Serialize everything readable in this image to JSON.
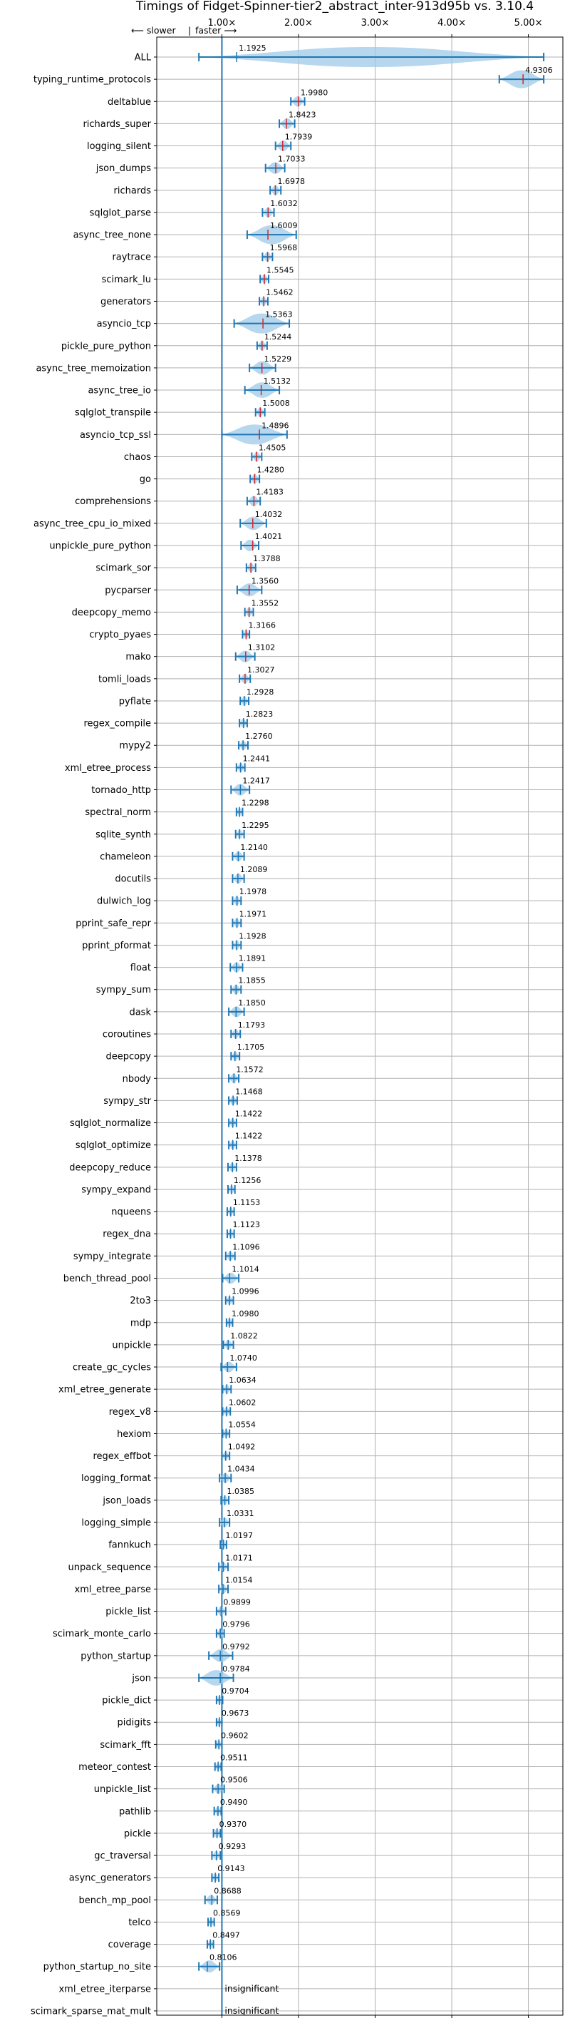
{
  "chart_data": {
    "type": "violin",
    "title": "Timings of Fidget-Spinner-tier2_abstract_inter-913d95b vs. 3.10.4",
    "direction_note": {
      "slower": "⟵ slower",
      "separator": "|",
      "faster": "faster ⟶"
    },
    "x_ticks": [
      "1.00×",
      "2.00×",
      "3.00×",
      "4.00×",
      "5.00×"
    ],
    "x_tick_values": [
      1,
      2,
      3,
      4,
      5
    ],
    "xlim": [
      0.15,
      5.45
    ],
    "reference_line": 1.0,
    "grid": true,
    "colors": {
      "violin": "#9ec9e8",
      "whisker": "#1f77b4",
      "faster_mark": "#1f77b4",
      "slower_mark": "#d62728",
      "grid": "#b0b0b0"
    },
    "benchmarks": [
      {
        "name": "ALL",
        "value": 1.1925,
        "label": "1.1925",
        "min": 0.7,
        "max": 5.2
      },
      {
        "name": "typing_runtime_protocols",
        "value": 4.9306,
        "label": "4.9306",
        "min": 4.62,
        "max": 5.2
      },
      {
        "name": "deltablue",
        "value": 1.998,
        "label": "1.9980",
        "min": 1.9,
        "max": 2.08
      },
      {
        "name": "richards_super",
        "value": 1.8423,
        "label": "1.8423",
        "min": 1.75,
        "max": 1.95
      },
      {
        "name": "logging_silent",
        "value": 1.7939,
        "label": "1.7939",
        "min": 1.7,
        "max": 1.9
      },
      {
        "name": "json_dumps",
        "value": 1.7033,
        "label": "1.7033",
        "min": 1.57,
        "max": 1.82
      },
      {
        "name": "richards",
        "value": 1.6978,
        "label": "1.6978",
        "min": 1.63,
        "max": 1.77
      },
      {
        "name": "sqlglot_parse",
        "value": 1.6032,
        "label": "1.6032",
        "min": 1.53,
        "max": 1.68
      },
      {
        "name": "async_tree_none",
        "value": 1.6009,
        "label": "1.6009",
        "min": 1.33,
        "max": 1.97
      },
      {
        "name": "raytrace",
        "value": 1.5968,
        "label": "1.5968",
        "min": 1.53,
        "max": 1.66
      },
      {
        "name": "scimark_lu",
        "value": 1.5545,
        "label": "1.5545",
        "min": 1.5,
        "max": 1.61
      },
      {
        "name": "generators",
        "value": 1.5462,
        "label": "1.5462",
        "min": 1.49,
        "max": 1.6
      },
      {
        "name": "asyncio_tcp",
        "value": 1.5363,
        "label": "1.5363",
        "min": 1.16,
        "max": 1.88
      },
      {
        "name": "pickle_pure_python",
        "value": 1.5244,
        "label": "1.5244",
        "min": 1.46,
        "max": 1.59
      },
      {
        "name": "async_tree_memoization",
        "value": 1.5229,
        "label": "1.5229",
        "min": 1.36,
        "max": 1.7
      },
      {
        "name": "async_tree_io",
        "value": 1.5132,
        "label": "1.5132",
        "min": 1.3,
        "max": 1.75
      },
      {
        "name": "sqlglot_transpile",
        "value": 1.5008,
        "label": "1.5008",
        "min": 1.44,
        "max": 1.56
      },
      {
        "name": "asyncio_tcp_ssl",
        "value": 1.4896,
        "label": "1.4896",
        "min": 1.0,
        "max": 1.85
      },
      {
        "name": "chaos",
        "value": 1.4505,
        "label": "1.4505",
        "min": 1.39,
        "max": 1.52
      },
      {
        "name": "go",
        "value": 1.428,
        "label": "1.4280",
        "min": 1.37,
        "max": 1.49
      },
      {
        "name": "comprehensions",
        "value": 1.4183,
        "label": "1.4183",
        "min": 1.33,
        "max": 1.5
      },
      {
        "name": "async_tree_cpu_io_mixed",
        "value": 1.4032,
        "label": "1.4032",
        "min": 1.24,
        "max": 1.58
      },
      {
        "name": "unpickle_pure_python",
        "value": 1.4021,
        "label": "1.4021",
        "min": 1.25,
        "max": 1.48
      },
      {
        "name": "scimark_sor",
        "value": 1.3788,
        "label": "1.3788",
        "min": 1.32,
        "max": 1.44
      },
      {
        "name": "pycparser",
        "value": 1.356,
        "label": "1.3560",
        "min": 1.2,
        "max": 1.52
      },
      {
        "name": "deepcopy_memo",
        "value": 1.3552,
        "label": "1.3552",
        "min": 1.3,
        "max": 1.41
      },
      {
        "name": "crypto_pyaes",
        "value": 1.3166,
        "label": "1.3166",
        "min": 1.27,
        "max": 1.36
      },
      {
        "name": "mako",
        "value": 1.3102,
        "label": "1.3102",
        "min": 1.18,
        "max": 1.43
      },
      {
        "name": "tomli_loads",
        "value": 1.3027,
        "label": "1.3027",
        "min": 1.23,
        "max": 1.37
      },
      {
        "name": "pyflate",
        "value": 1.2928,
        "label": "1.2928",
        "min": 1.24,
        "max": 1.35
      },
      {
        "name": "regex_compile",
        "value": 1.2823,
        "label": "1.2823",
        "min": 1.23,
        "max": 1.33
      },
      {
        "name": "mypy2",
        "value": 1.276,
        "label": "1.2760",
        "min": 1.22,
        "max": 1.34
      },
      {
        "name": "xml_etree_process",
        "value": 1.2441,
        "label": "1.2441",
        "min": 1.19,
        "max": 1.3
      },
      {
        "name": "tornado_http",
        "value": 1.2417,
        "label": "1.2417",
        "min": 1.12,
        "max": 1.36
      },
      {
        "name": "spectral_norm",
        "value": 1.2298,
        "label": "1.2298",
        "min": 1.19,
        "max": 1.27
      },
      {
        "name": "sqlite_synth",
        "value": 1.2295,
        "label": "1.2295",
        "min": 1.18,
        "max": 1.29
      },
      {
        "name": "chameleon",
        "value": 1.214,
        "label": "1.2140",
        "min": 1.14,
        "max": 1.29
      },
      {
        "name": "docutils",
        "value": 1.2089,
        "label": "1.2089",
        "min": 1.14,
        "max": 1.29
      },
      {
        "name": "dulwich_log",
        "value": 1.1978,
        "label": "1.1978",
        "min": 1.14,
        "max": 1.25
      },
      {
        "name": "pprint_safe_repr",
        "value": 1.1971,
        "label": "1.1971",
        "min": 1.14,
        "max": 1.25
      },
      {
        "name": "pprint_pformat",
        "value": 1.1928,
        "label": "1.1928",
        "min": 1.14,
        "max": 1.25
      },
      {
        "name": "float",
        "value": 1.1891,
        "label": "1.1891",
        "min": 1.11,
        "max": 1.27
      },
      {
        "name": "sympy_sum",
        "value": 1.1855,
        "label": "1.1855",
        "min": 1.12,
        "max": 1.25
      },
      {
        "name": "dask",
        "value": 1.185,
        "label": "1.1850",
        "min": 1.09,
        "max": 1.29
      },
      {
        "name": "coroutines",
        "value": 1.1793,
        "label": "1.1793",
        "min": 1.12,
        "max": 1.24
      },
      {
        "name": "deepcopy",
        "value": 1.1705,
        "label": "1.1705",
        "min": 1.12,
        "max": 1.23
      },
      {
        "name": "nbody",
        "value": 1.1572,
        "label": "1.1572",
        "min": 1.09,
        "max": 1.22
      },
      {
        "name": "sympy_str",
        "value": 1.1468,
        "label": "1.1468",
        "min": 1.09,
        "max": 1.2
      },
      {
        "name": "sqlglot_normalize",
        "value": 1.1422,
        "label": "1.1422",
        "min": 1.09,
        "max": 1.19
      },
      {
        "name": "sqlglot_optimize",
        "value": 1.1422,
        "label": "1.1422",
        "min": 1.09,
        "max": 1.19
      },
      {
        "name": "deepcopy_reduce",
        "value": 1.1378,
        "label": "1.1378",
        "min": 1.08,
        "max": 1.19
      },
      {
        "name": "sympy_expand",
        "value": 1.1256,
        "label": "1.1256",
        "min": 1.08,
        "max": 1.17
      },
      {
        "name": "nqueens",
        "value": 1.1153,
        "label": "1.1153",
        "min": 1.07,
        "max": 1.16
      },
      {
        "name": "regex_dna",
        "value": 1.1123,
        "label": "1.1123",
        "min": 1.07,
        "max": 1.16
      },
      {
        "name": "sympy_integrate",
        "value": 1.1096,
        "label": "1.1096",
        "min": 1.05,
        "max": 1.17
      },
      {
        "name": "bench_thread_pool",
        "value": 1.1014,
        "label": "1.1014",
        "min": 1.01,
        "max": 1.22
      },
      {
        "name": "2to3",
        "value": 1.0996,
        "label": "1.0996",
        "min": 1.05,
        "max": 1.15
      },
      {
        "name": "mdp",
        "value": 1.098,
        "label": "1.0980",
        "min": 1.06,
        "max": 1.14
      },
      {
        "name": "unpickle",
        "value": 1.0822,
        "label": "1.0822",
        "min": 1.02,
        "max": 1.15
      },
      {
        "name": "create_gc_cycles",
        "value": 1.074,
        "label": "1.0740",
        "min": 0.99,
        "max": 1.19
      },
      {
        "name": "xml_etree_generate",
        "value": 1.0634,
        "label": "1.0634",
        "min": 1.01,
        "max": 1.12
      },
      {
        "name": "regex_v8",
        "value": 1.0602,
        "label": "1.0602",
        "min": 1.01,
        "max": 1.11
      },
      {
        "name": "hexiom",
        "value": 1.0554,
        "label": "1.0554",
        "min": 1.01,
        "max": 1.1
      },
      {
        "name": "regex_effbot",
        "value": 1.0492,
        "label": "1.0492",
        "min": 1.0,
        "max": 1.1
      },
      {
        "name": "logging_format",
        "value": 1.0434,
        "label": "1.0434",
        "min": 0.97,
        "max": 1.12
      },
      {
        "name": "json_loads",
        "value": 1.0385,
        "label": "1.0385",
        "min": 0.99,
        "max": 1.09
      },
      {
        "name": "logging_simple",
        "value": 1.0331,
        "label": "1.0331",
        "min": 0.97,
        "max": 1.1
      },
      {
        "name": "fannkuch",
        "value": 1.0197,
        "label": "1.0197",
        "min": 0.98,
        "max": 1.06
      },
      {
        "name": "unpack_sequence",
        "value": 1.0171,
        "label": "1.0171",
        "min": 0.96,
        "max": 1.08
      },
      {
        "name": "xml_etree_parse",
        "value": 1.0154,
        "label": "1.0154",
        "min": 0.96,
        "max": 1.08
      },
      {
        "name": "pickle_list",
        "value": 0.9899,
        "label": "0.9899",
        "min": 0.93,
        "max": 1.05
      },
      {
        "name": "scimark_monte_carlo",
        "value": 0.9796,
        "label": "0.9796",
        "min": 0.93,
        "max": 1.03
      },
      {
        "name": "python_startup",
        "value": 0.9792,
        "label": "0.9792",
        "min": 0.83,
        "max": 1.14
      },
      {
        "name": "json",
        "value": 0.9784,
        "label": "0.9784",
        "min": 0.7,
        "max": 1.15
      },
      {
        "name": "pickle_dict",
        "value": 0.9704,
        "label": "0.9704",
        "min": 0.93,
        "max": 1.01
      },
      {
        "name": "pidigits",
        "value": 0.9673,
        "label": "0.9673",
        "min": 0.93,
        "max": 1.0
      },
      {
        "name": "scimark_fft",
        "value": 0.9602,
        "label": "0.9602",
        "min": 0.92,
        "max": 1.0
      },
      {
        "name": "meteor_contest",
        "value": 0.9511,
        "label": "0.9511",
        "min": 0.91,
        "max": 0.99
      },
      {
        "name": "unpickle_list",
        "value": 0.9506,
        "label": "0.9506",
        "min": 0.88,
        "max": 1.03
      },
      {
        "name": "pathlib",
        "value": 0.949,
        "label": "0.9490",
        "min": 0.9,
        "max": 0.99
      },
      {
        "name": "pickle",
        "value": 0.937,
        "label": "0.9370",
        "min": 0.89,
        "max": 0.98
      },
      {
        "name": "gc_traversal",
        "value": 0.9293,
        "label": "0.9293",
        "min": 0.87,
        "max": 0.98
      },
      {
        "name": "async_generators",
        "value": 0.9143,
        "label": "0.9143",
        "min": 0.87,
        "max": 0.96
      },
      {
        "name": "bench_mp_pool",
        "value": 0.8688,
        "label": "0.8688",
        "min": 0.78,
        "max": 0.94
      },
      {
        "name": "telco",
        "value": 0.8569,
        "label": "0.8569",
        "min": 0.82,
        "max": 0.9
      },
      {
        "name": "coverage",
        "value": 0.8497,
        "label": "0.8497",
        "min": 0.81,
        "max": 0.89
      },
      {
        "name": "python_startup_no_site",
        "value": 0.8106,
        "label": "0.8106",
        "min": 0.7,
        "max": 0.97
      },
      {
        "name": "xml_etree_iterparse",
        "value": null,
        "label": "insignificant",
        "min": null,
        "max": null
      },
      {
        "name": "scimark_sparse_mat_mult",
        "value": null,
        "label": "insignificant",
        "min": null,
        "max": null
      }
    ]
  }
}
